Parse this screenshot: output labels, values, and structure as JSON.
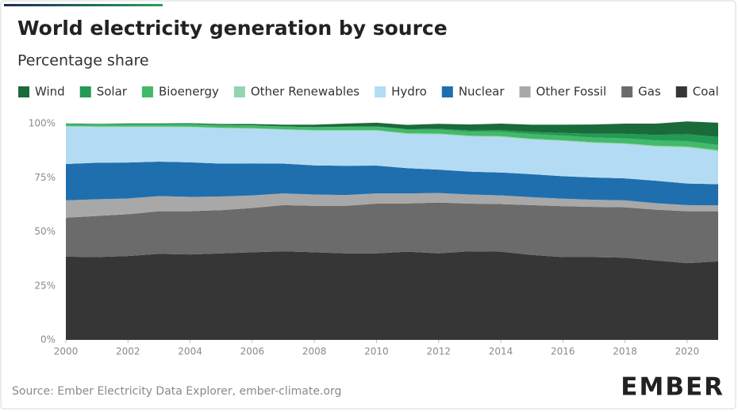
{
  "chart_data": {
    "type": "stacked_area",
    "title": "World electricity generation by source",
    "subtitle": "Percentage share",
    "source": "Source: Ember Electricity Data Explorer, ember-climate.org",
    "logo": "EMBER",
    "x": [
      2000,
      2001,
      2002,
      2003,
      2004,
      2005,
      2006,
      2007,
      2008,
      2009,
      2010,
      2011,
      2012,
      2013,
      2014,
      2015,
      2016,
      2017,
      2018,
      2019,
      2020,
      2021
    ],
    "xlim": [
      2000,
      2021
    ],
    "xticks": [
      2000,
      2002,
      2004,
      2006,
      2008,
      2010,
      2012,
      2014,
      2016,
      2018,
      2020
    ],
    "ylim": [
      0,
      100
    ],
    "yticks": [
      {
        "value": 0,
        "label": "0%"
      },
      {
        "value": 25,
        "label": "25%"
      },
      {
        "value": 50,
        "label": "50%"
      },
      {
        "value": 75,
        "label": "75%"
      },
      {
        "value": 100,
        "label": "100%"
      }
    ],
    "grid": false,
    "legend": "top",
    "series": [
      {
        "name": "Wind",
        "color": "#1a6b3a",
        "values": [
          0.2,
          0.2,
          0.3,
          0.3,
          0.4,
          0.5,
          0.6,
          0.8,
          1.1,
          1.4,
          1.7,
          2,
          2.3,
          2.7,
          3,
          3.4,
          3.8,
          4.3,
          4.7,
          5.2,
          5.9,
          6.6
        ]
      },
      {
        "name": "Solar",
        "color": "#239a55",
        "values": [
          0,
          0,
          0,
          0,
          0,
          0,
          0,
          0,
          0,
          0.1,
          0.1,
          0.2,
          0.4,
          0.6,
          0.8,
          1,
          1.3,
          1.7,
          2.1,
          2.6,
          3.2,
          3.7
        ]
      },
      {
        "name": "Bioenergy",
        "color": "#43b96a",
        "values": [
          1,
          1,
          1.1,
          1.1,
          1.2,
          1.2,
          1.3,
          1.3,
          1.4,
          1.5,
          1.6,
          1.7,
          1.8,
          1.9,
          2,
          2.1,
          2.1,
          2.2,
          2.3,
          2.4,
          2.5,
          2.4
        ]
      },
      {
        "name": "Other Renewables",
        "color": "#94d4b0",
        "values": [
          0.3,
          0.3,
          0.3,
          0.3,
          0.3,
          0.3,
          0.3,
          0.3,
          0.3,
          0.3,
          0.3,
          0.4,
          0.4,
          0.4,
          0.4,
          0.4,
          0.4,
          0.4,
          0.4,
          0.5,
          0.5,
          0.5
        ]
      },
      {
        "name": "Hydro",
        "color": "#b3dcf4",
        "values": [
          17.3,
          16.5,
          16.4,
          16,
          16.2,
          16.3,
          16,
          15.6,
          16,
          16.2,
          16.1,
          15.7,
          16.3,
          16.2,
          16.4,
          16,
          16.2,
          15.9,
          15.8,
          15.7,
          16.6,
          15.2
        ]
      },
      {
        "name": "Nuclear",
        "color": "#1f6fae",
        "values": [
          16.8,
          16.9,
          16.6,
          15.9,
          16,
          15.2,
          14.8,
          13.8,
          13.5,
          13.5,
          12.9,
          11.7,
          10.8,
          10.6,
          10.6,
          10.6,
          10.4,
          10.3,
          10.2,
          10.4,
          10,
          9.8
        ]
      },
      {
        "name": "Other Fossil",
        "color": "#a8a8a8",
        "values": [
          8,
          7.7,
          7.3,
          7,
          6.6,
          6.3,
          5.8,
          5.4,
          5.2,
          5,
          4.7,
          4.6,
          4.4,
          4.2,
          4,
          3.7,
          3.5,
          3.3,
          3.2,
          3,
          2.8,
          2.7
        ]
      },
      {
        "name": "Gas",
        "color": "#6b6b6b",
        "values": [
          18,
          19,
          19.3,
          19.7,
          20,
          20,
          20.5,
          21.3,
          21.5,
          22,
          23,
          22.3,
          23.5,
          22,
          22,
          23,
          23.5,
          23.2,
          23.3,
          23.5,
          24,
          23.2
        ]
      },
      {
        "name": "Coal",
        "color": "#363636",
        "values": [
          38.5,
          38.3,
          38.8,
          39.8,
          39.5,
          40,
          40.5,
          41,
          40.5,
          40,
          40,
          40.8,
          40,
          41,
          40.8,
          39.3,
          38.3,
          38.3,
          38,
          36.7,
          35.5,
          36.3
        ]
      }
    ]
  }
}
